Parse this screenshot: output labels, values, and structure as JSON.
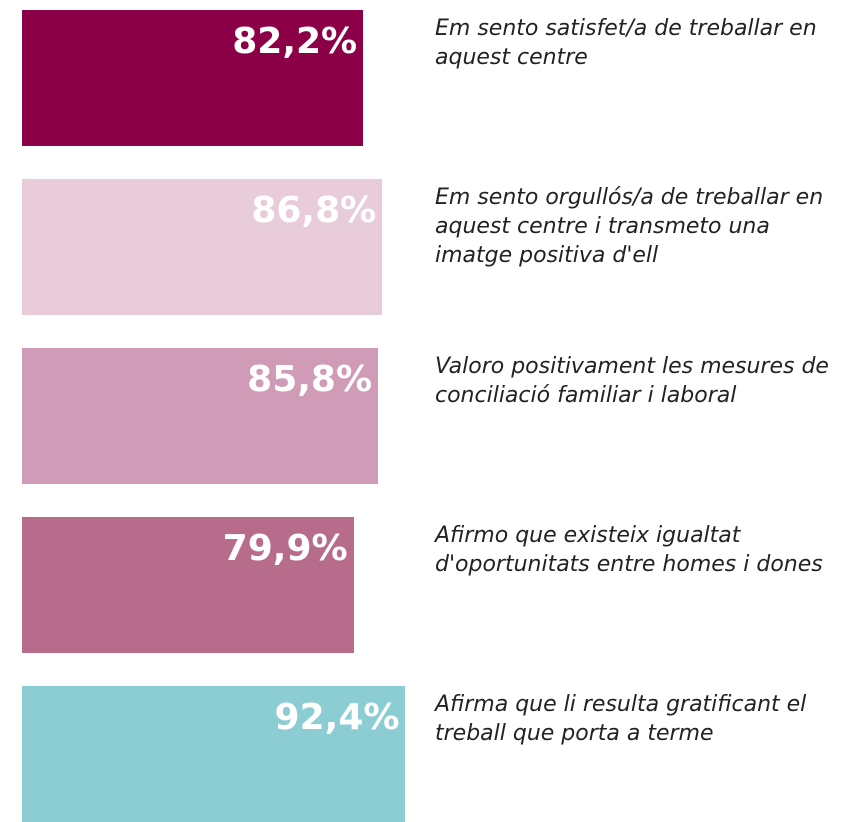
{
  "chart_data": {
    "type": "bar",
    "orientation": "horizontal",
    "categories": [
      "Em sento satisfet/a de treballar en aquest centre",
      "Em sento orgullós/a de treballar en aquest centre i transmeto una imatge positiva d'ell",
      "Valoro positivament les mesures de conciliació familiar i laboral",
      "Afirmo que existeix igualtat d'oportunitats entre homes i dones",
      "Afirma que li resulta gratificant el treball que porta a terme"
    ],
    "values": [
      82.2,
      86.8,
      85.8,
      79.9,
      92.4
    ],
    "value_labels": [
      "82,2%",
      "86,8%",
      "85,8%",
      "79,9%",
      "92,4%"
    ],
    "colors": [
      "#8b0046",
      "#e8ccd9",
      "#cf9bb6",
      "#b76c8c",
      "#8ccdd3"
    ]
  }
}
